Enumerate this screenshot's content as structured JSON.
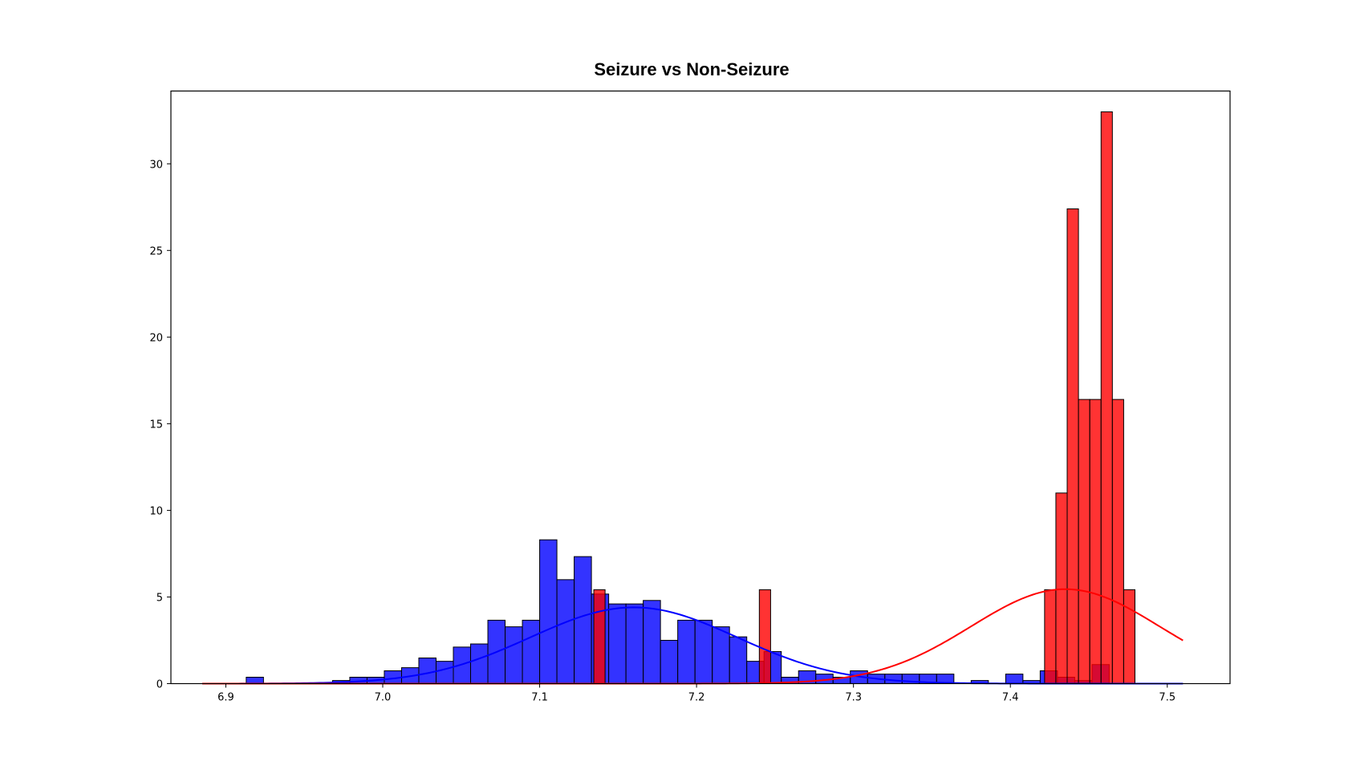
{
  "chart_data": {
    "type": "bar",
    "title": "Seizure vs Non-Seizure",
    "xlabel": "",
    "ylabel": "",
    "xlim": [
      6.865,
      7.54
    ],
    "ylim": [
      0,
      34.2
    ],
    "x_ticks": [
      "6.9",
      "7.0",
      "7.1",
      "7.2",
      "7.3",
      "7.4",
      "7.5"
    ],
    "y_ticks": [
      "0",
      "5",
      "10",
      "15",
      "20",
      "25",
      "30"
    ],
    "grid": false,
    "legend": "none",
    "series": [
      {
        "color": "#0000ff",
        "bin_width": 0.011,
        "bars": [
          [
            6.913,
            0.37
          ],
          [
            6.968,
            0.18
          ],
          [
            6.979,
            0.37
          ],
          [
            6.99,
            0.37
          ],
          [
            7.001,
            0.74
          ],
          [
            7.012,
            0.92
          ],
          [
            7.023,
            1.48
          ],
          [
            7.034,
            1.29
          ],
          [
            7.045,
            2.11
          ],
          [
            7.056,
            2.29
          ],
          [
            7.067,
            3.66
          ],
          [
            7.078,
            3.28
          ],
          [
            7.089,
            3.66
          ],
          [
            7.1,
            8.3
          ],
          [
            7.111,
            6.0
          ],
          [
            7.122,
            7.33
          ],
          [
            7.133,
            5.17
          ],
          [
            7.144,
            4.6
          ],
          [
            7.155,
            4.6
          ],
          [
            7.166,
            4.8
          ],
          [
            7.177,
            2.5
          ],
          [
            7.188,
            3.66
          ],
          [
            7.199,
            3.66
          ],
          [
            7.21,
            3.28
          ],
          [
            7.221,
            2.7
          ],
          [
            7.232,
            1.29
          ],
          [
            7.243,
            1.85
          ],
          [
            7.254,
            0.37
          ],
          [
            7.265,
            0.74
          ],
          [
            7.276,
            0.55
          ],
          [
            7.287,
            0.37
          ],
          [
            7.298,
            0.74
          ],
          [
            7.309,
            0.55
          ],
          [
            7.32,
            0.55
          ],
          [
            7.331,
            0.55
          ],
          [
            7.342,
            0.55
          ],
          [
            7.353,
            0.55
          ],
          [
            7.375,
            0.18
          ],
          [
            7.397,
            0.55
          ],
          [
            7.408,
            0.18
          ],
          [
            7.419,
            0.74
          ],
          [
            7.43,
            0.37
          ],
          [
            7.441,
            0.18
          ],
          [
            7.452,
            1.1
          ]
        ],
        "curve": {
          "mean": 7.16,
          "sd": 0.066,
          "peak": 4.4
        }
      },
      {
        "color": "#ff0000",
        "bin_width": 0.0072,
        "bars": [
          [
            7.1345,
            5.42
          ],
          [
            7.24,
            5.42
          ],
          [
            7.4218,
            5.42
          ],
          [
            7.429,
            11.0
          ],
          [
            7.4362,
            27.4
          ],
          [
            7.4434,
            16.4
          ],
          [
            7.4506,
            16.4
          ],
          [
            7.4578,
            33.0
          ],
          [
            7.465,
            16.4
          ],
          [
            7.4722,
            5.42
          ]
        ],
        "curve": {
          "mean": 7.435,
          "sd": 0.06,
          "peak": 5.45
        }
      }
    ]
  }
}
